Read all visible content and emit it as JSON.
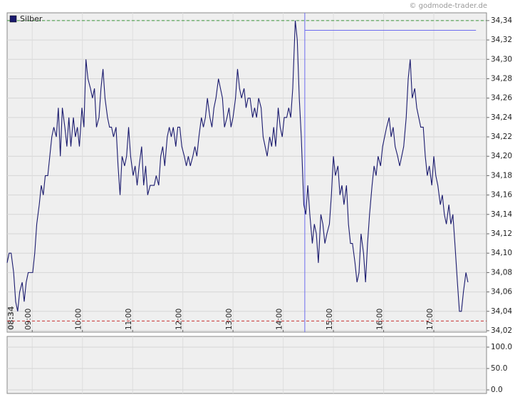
{
  "chart_data": [
    {
      "type": "line",
      "watermark": "© godmode-trader.de",
      "start_label": "08:34",
      "legend": "top-left",
      "grid": true,
      "xlim": [
        8.5,
        18.05
      ],
      "xticks": [
        {
          "value": 9,
          "label": "09:00"
        },
        {
          "value": 10,
          "label": "10:00"
        },
        {
          "value": 11,
          "label": "11:00"
        },
        {
          "value": 12,
          "label": "12:00"
        },
        {
          "value": 13,
          "label": "13:00"
        },
        {
          "value": 14,
          "label": "14:00"
        },
        {
          "value": 15,
          "label": "15:00"
        },
        {
          "value": 16,
          "label": "16:00"
        },
        {
          "value": 17,
          "label": "17:00"
        }
      ],
      "ylim": [
        34.0185,
        34.348
      ],
      "yticks": [
        {
          "value": 34.02,
          "label": "34,02"
        },
        {
          "value": 34.04,
          "label": "34,04"
        },
        {
          "value": 34.06,
          "label": "34,06"
        },
        {
          "value": 34.08,
          "label": "34,08"
        },
        {
          "value": 34.1,
          "label": "34,10"
        },
        {
          "value": 34.12,
          "label": "34,12"
        },
        {
          "value": 34.14,
          "label": "34,14"
        },
        {
          "value": 34.16,
          "label": "34,16"
        },
        {
          "value": 34.18,
          "label": "34,18"
        },
        {
          "value": 34.2,
          "label": "34,20"
        },
        {
          "value": 34.22,
          "label": "34,22"
        },
        {
          "value": 34.24,
          "label": "34,24"
        },
        {
          "value": 34.26,
          "label": "34,26"
        },
        {
          "value": 34.28,
          "label": "34,28"
        },
        {
          "value": 34.3,
          "label": "34,30"
        },
        {
          "value": 34.32,
          "label": "34,32"
        },
        {
          "value": 34.34,
          "label": "34,34"
        }
      ],
      "reference_lines": [
        {
          "value": 34.34,
          "color": "#3c963c"
        },
        {
          "value": 34.03,
          "color": "#c83232"
        }
      ],
      "marker": {
        "x": 14.43,
        "y": 34.33,
        "x_end": 17.84,
        "color": "#6b6bef"
      },
      "x": [
        8.5,
        8.54,
        8.58,
        8.63,
        8.67,
        8.71,
        8.75,
        8.8,
        8.84,
        8.88,
        8.92,
        8.97,
        9.01,
        9.05,
        9.09,
        9.14,
        9.18,
        9.22,
        9.26,
        9.31,
        9.35,
        9.39,
        9.43,
        9.48,
        9.52,
        9.56,
        9.6,
        9.65,
        9.69,
        9.73,
        9.77,
        9.82,
        9.86,
        9.9,
        9.94,
        9.99,
        10.03,
        10.07,
        10.11,
        10.16,
        10.2,
        10.24,
        10.28,
        10.33,
        10.37,
        10.41,
        10.45,
        10.5,
        10.54,
        10.58,
        10.62,
        10.67,
        10.71,
        10.75,
        10.79,
        10.84,
        10.88,
        10.92,
        10.96,
        11.01,
        11.05,
        11.09,
        11.13,
        11.18,
        11.22,
        11.26,
        11.3,
        11.35,
        11.39,
        11.43,
        11.47,
        11.52,
        11.56,
        11.6,
        11.64,
        11.69,
        11.73,
        11.77,
        11.81,
        11.86,
        11.9,
        11.94,
        11.98,
        12.03,
        12.07,
        12.11,
        12.15,
        12.2,
        12.24,
        12.28,
        12.32,
        12.37,
        12.41,
        12.45,
        12.49,
        12.54,
        12.58,
        12.62,
        12.66,
        12.71,
        12.75,
        12.79,
        12.83,
        12.88,
        12.92,
        12.96,
        13.0,
        13.05,
        13.09,
        13.13,
        13.17,
        13.22,
        13.26,
        13.3,
        13.34,
        13.39,
        13.43,
        13.47,
        13.51,
        13.56,
        13.6,
        13.64,
        13.68,
        13.73,
        13.77,
        13.81,
        13.85,
        13.9,
        13.94,
        13.98,
        14.02,
        14.07,
        14.11,
        14.15,
        14.19,
        14.24,
        14.28,
        14.32,
        14.36,
        14.41,
        14.45,
        14.49,
        14.53,
        14.58,
        14.62,
        14.66,
        14.7,
        14.75,
        14.79,
        14.83,
        14.87,
        14.92,
        14.96,
        15.0,
        15.04,
        15.09,
        15.13,
        15.17,
        15.21,
        15.26,
        15.3,
        15.34,
        15.38,
        15.43,
        15.47,
        15.51,
        15.55,
        15.6,
        15.64,
        15.68,
        15.72,
        15.77,
        15.81,
        15.85,
        15.89,
        15.94,
        15.98,
        16.02,
        16.06,
        16.11,
        16.15,
        16.19,
        16.23,
        16.28,
        16.32,
        16.36,
        16.4,
        16.45,
        16.49,
        16.53,
        16.57,
        16.62,
        16.66,
        16.7,
        16.74,
        16.79,
        16.83,
        16.87,
        16.91,
        16.96,
        17.0,
        17.04,
        17.08,
        17.13,
        17.17,
        17.21,
        17.25,
        17.3,
        17.34,
        17.38,
        17.42,
        17.47,
        17.51,
        17.55,
        17.59,
        17.64,
        17.68
      ],
      "series": [
        {
          "name": "Silber",
          "color": "#1a1a6e",
          "values": [
            34.09,
            34.1,
            34.1,
            34.08,
            34.05,
            34.04,
            34.06,
            34.07,
            34.05,
            34.07,
            34.08,
            34.08,
            34.08,
            34.1,
            34.13,
            34.15,
            34.17,
            34.16,
            34.18,
            34.18,
            34.2,
            34.22,
            34.23,
            34.22,
            34.25,
            34.2,
            34.25,
            34.23,
            34.21,
            34.24,
            34.21,
            34.24,
            34.22,
            34.23,
            34.21,
            34.25,
            34.23,
            34.3,
            34.28,
            34.27,
            34.26,
            34.27,
            34.23,
            34.24,
            34.27,
            34.29,
            34.26,
            34.24,
            34.23,
            34.23,
            34.22,
            34.23,
            34.19,
            34.16,
            34.2,
            34.19,
            34.2,
            34.23,
            34.2,
            34.18,
            34.19,
            34.17,
            34.19,
            34.21,
            34.17,
            34.19,
            34.16,
            34.17,
            34.17,
            34.17,
            34.18,
            34.17,
            34.2,
            34.21,
            34.19,
            34.22,
            34.23,
            34.22,
            34.23,
            34.21,
            34.23,
            34.23,
            34.21,
            34.2,
            34.19,
            34.2,
            34.19,
            34.2,
            34.21,
            34.2,
            34.22,
            34.24,
            34.23,
            34.24,
            34.26,
            34.24,
            34.23,
            34.25,
            34.26,
            34.28,
            34.27,
            34.26,
            34.23,
            34.24,
            34.25,
            34.23,
            34.24,
            34.26,
            34.29,
            34.27,
            34.26,
            34.27,
            34.25,
            34.26,
            34.26,
            34.24,
            34.25,
            34.24,
            34.26,
            34.25,
            34.22,
            34.21,
            34.2,
            34.22,
            34.21,
            34.23,
            34.21,
            34.25,
            34.23,
            34.22,
            34.24,
            34.24,
            34.25,
            34.24,
            34.27,
            34.34,
            34.32,
            34.26,
            34.22,
            34.15,
            34.14,
            34.17,
            34.14,
            34.11,
            34.13,
            34.12,
            34.09,
            34.14,
            34.13,
            34.11,
            34.12,
            34.13,
            34.16,
            34.2,
            34.18,
            34.19,
            34.16,
            34.17,
            34.15,
            34.17,
            34.13,
            34.11,
            34.11,
            34.09,
            34.07,
            34.08,
            34.12,
            34.1,
            34.07,
            34.11,
            34.14,
            34.17,
            34.19,
            34.18,
            34.2,
            34.19,
            34.21,
            34.22,
            34.23,
            34.24,
            34.22,
            34.23,
            34.21,
            34.2,
            34.19,
            34.2,
            34.21,
            34.24,
            34.28,
            34.3,
            34.26,
            34.27,
            34.25,
            34.24,
            34.23,
            34.23,
            34.2,
            34.18,
            34.19,
            34.17,
            34.2,
            34.18,
            34.17,
            34.15,
            34.16,
            34.14,
            34.13,
            34.15,
            34.13,
            34.14,
            34.11,
            34.07,
            34.04,
            34.04,
            34.06,
            34.08,
            34.07
          ]
        }
      ]
    },
    {
      "type": "line",
      "grid": true,
      "ylim": [
        -8.3,
        125
      ],
      "yticks": [
        {
          "value": 0,
          "label": "0.0"
        },
        {
          "value": 50,
          "label": "50.0"
        },
        {
          "value": 100,
          "label": "100.0"
        }
      ]
    }
  ]
}
